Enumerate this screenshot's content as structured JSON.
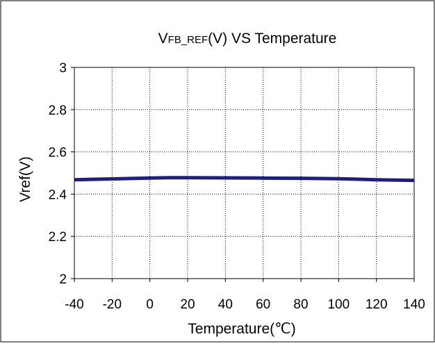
{
  "chart_data": {
    "type": "line",
    "title_main": "V",
    "title_sub": "FB_REF",
    "title_rest": "(V) VS Temperature",
    "xlabel": "Temperature(℃)",
    "ylabel": "Vref(V)",
    "xlim": [
      -40,
      140
    ],
    "ylim": [
      2,
      3
    ],
    "x_ticks": [
      -40,
      -20,
      0,
      20,
      40,
      60,
      80,
      100,
      120,
      140
    ],
    "y_ticks": [
      2,
      2.2,
      2.4,
      2.6,
      2.8,
      3
    ],
    "grid": true,
    "legend": "none",
    "series": [
      {
        "color": "#1f1f7a",
        "x": [
          -40,
          -20,
          0,
          10,
          20,
          40,
          60,
          80,
          100,
          120,
          140
        ],
        "y": [
          2.468,
          2.472,
          2.476,
          2.478,
          2.478,
          2.477,
          2.476,
          2.475,
          2.473,
          2.468,
          2.465
        ]
      }
    ]
  }
}
